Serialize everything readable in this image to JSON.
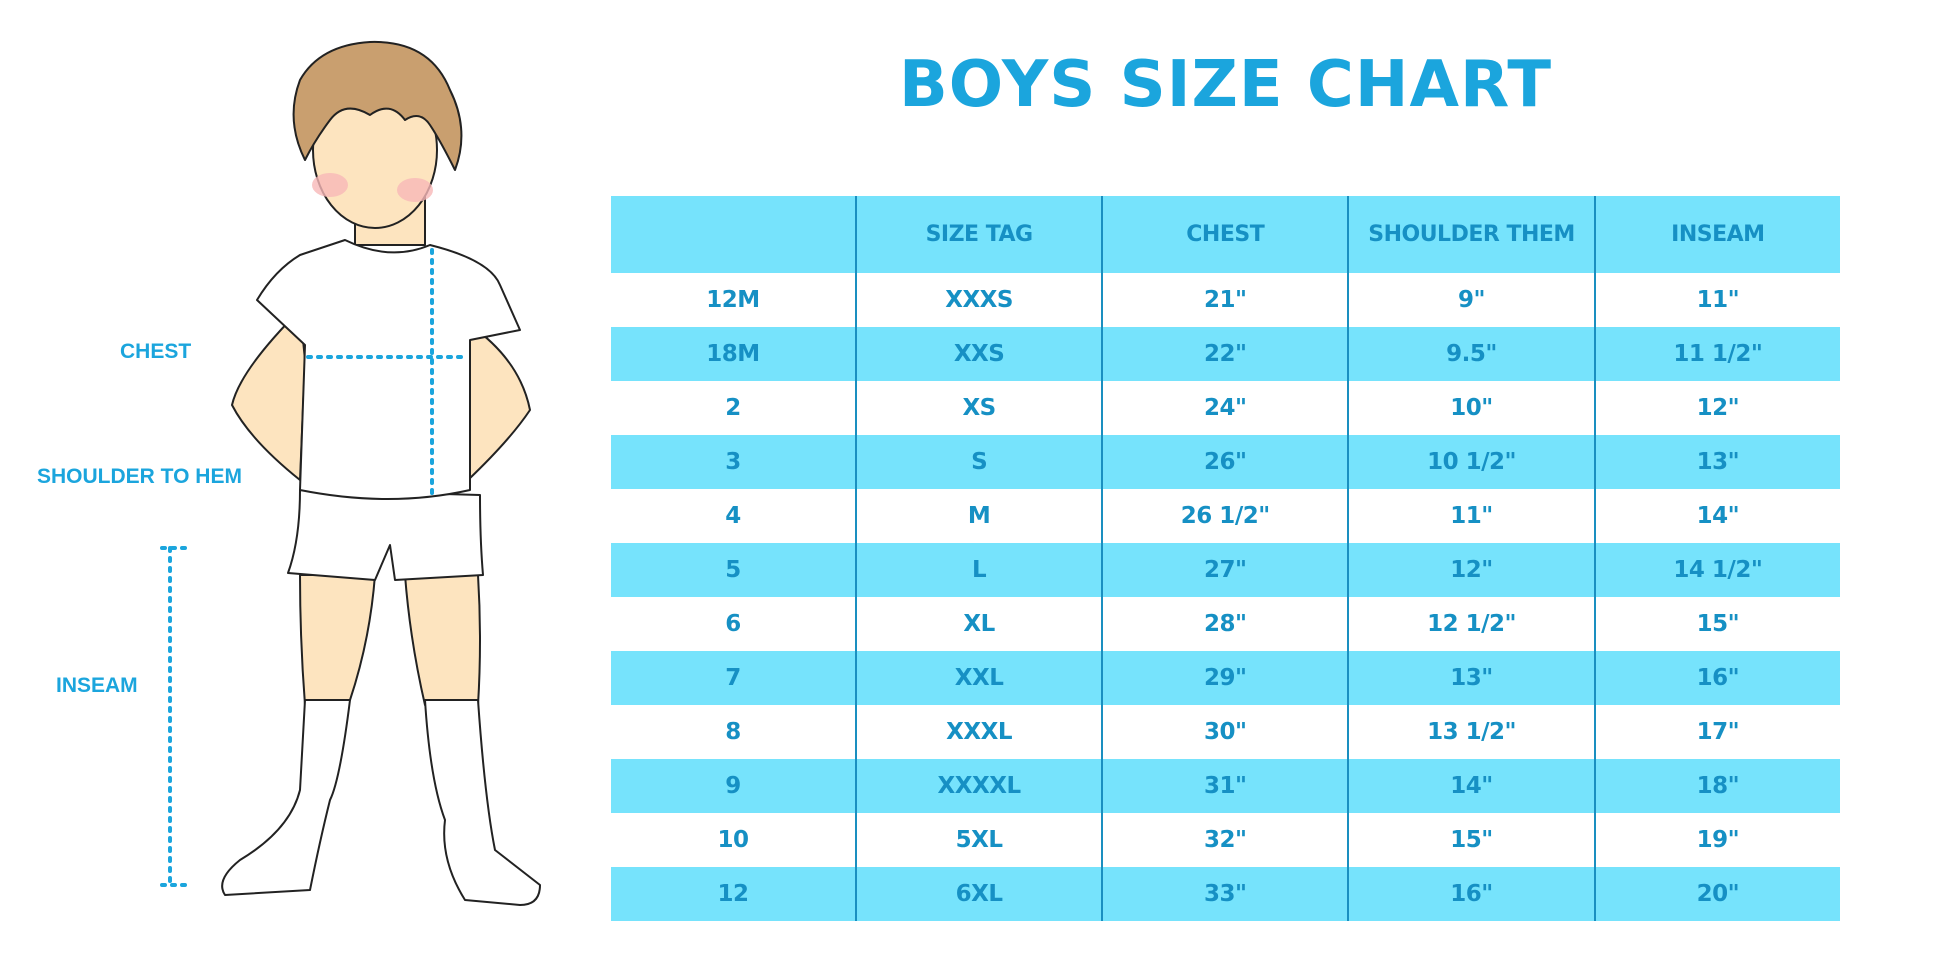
{
  "title": "BOYS SIZE CHART",
  "colors": {
    "accent": "#1ba5dd",
    "header_bg": "#76e3fc",
    "text": "#1690c4"
  },
  "measure_labels": {
    "chest": "CHEST",
    "shoulder": "SHOULDER TO HEM",
    "inseam": "INSEAM"
  },
  "table": {
    "headers": [
      "",
      "SIZE TAG",
      "CHEST",
      "SHOULDER THEM",
      "INSEAM"
    ],
    "rows": [
      [
        "12M",
        "XXXS",
        "21\"",
        "9\"",
        "11\""
      ],
      [
        "18M",
        "XXS",
        "22\"",
        "9.5\"",
        "11 1/2\""
      ],
      [
        "2",
        "XS",
        "24\"",
        "10\"",
        "12\""
      ],
      [
        "3",
        "S",
        "26\"",
        "10 1/2\"",
        "13\""
      ],
      [
        "4",
        "M",
        "26 1/2\"",
        "11\"",
        "14\""
      ],
      [
        "5",
        "L",
        "27\"",
        "12\"",
        "14 1/2\""
      ],
      [
        "6",
        "XL",
        "28\"",
        "12 1/2\"",
        "15\""
      ],
      [
        "7",
        "XXL",
        "29\"",
        "13\"",
        "16\""
      ],
      [
        "8",
        "XXXL",
        "30\"",
        "13 1/2\"",
        "17\""
      ],
      [
        "9",
        "XXXXL",
        "31\"",
        "14\"",
        "18\""
      ],
      [
        "10",
        "5XL",
        "32\"",
        "15\"",
        "19\""
      ],
      [
        "12",
        "6XL",
        "33\"",
        "16\"",
        "20\""
      ]
    ]
  }
}
